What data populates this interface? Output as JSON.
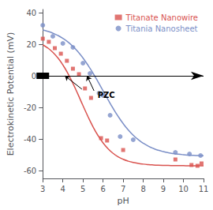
{
  "chart_data": {
    "type": "scatter",
    "xlabel": "pH",
    "ylabel": "Electrokinetic Potential (mV)",
    "xlim": [
      3,
      11
    ],
    "ylim": [
      -65,
      42
    ],
    "xticks": [
      3,
      4,
      5,
      6,
      7,
      8,
      9,
      10,
      11
    ],
    "yticks": [
      -60,
      -40,
      -20,
      0,
      20,
      40
    ],
    "grid": false,
    "legend": "upper right",
    "series": [
      {
        "type": "line",
        "color": "#d9534f",
        "x": [
          3,
          3.25,
          3.5,
          3.75,
          4,
          4.25,
          4.5,
          4.75,
          5,
          5.25,
          5.5,
          5.75,
          6,
          6.25,
          6.5,
          6.75,
          7,
          7.25,
          7.5,
          7.75,
          8,
          8.25,
          8.5,
          8.75,
          9,
          9.25,
          9.5,
          9.75,
          10,
          10.25,
          10.5,
          10.75,
          11
        ],
        "values": [
          19.64,
          17.6,
          14.88,
          11.34,
          6.88,
          1.47,
          -4.81,
          -11.71,
          -18.87,
          -25.85,
          -32.27,
          -37.87,
          -42.52,
          -46.24,
          -49.11,
          -51.28,
          -52.88,
          -54.05,
          -54.9,
          -55.51,
          -55.94,
          -56.25,
          -56.47,
          -56.63,
          -56.74,
          -56.81,
          -56.87,
          -56.91,
          -56.93,
          -56.95,
          -56.97,
          -56.98,
          -56.98
        ]
      },
      {
        "type": "line",
        "color": "#7b8fc7",
        "x": [
          3,
          3.25,
          3.5,
          3.75,
          4,
          4.25,
          4.5,
          4.75,
          5,
          5.25,
          5.5,
          5.75,
          6,
          6.25,
          6.5,
          6.75,
          7,
          7.25,
          7.5,
          7.75,
          8,
          8.25,
          8.5,
          8.75,
          9,
          9.25,
          9.5,
          9.75,
          10,
          10.25,
          10.5,
          10.75,
          11
        ],
        "values": [
          29.05,
          28.16,
          27.01,
          25.56,
          23.72,
          21.44,
          18.63,
          15.25,
          11.27,
          6.71,
          1.63,
          -3.83,
          -9.5,
          -15.17,
          -20.63,
          -25.71,
          -30.27,
          -34.25,
          -37.63,
          -40.43,
          -42.72,
          -44.56,
          -46.01,
          -47.16,
          -48.05,
          -48.74,
          -49.27,
          -49.68,
          -49.99,
          -50.23,
          -50.42,
          -50.56,
          -50.66
        ]
      },
      {
        "type": "scatter",
        "name": "Titanate Nanowire",
        "color": "#d9534f",
        "marker": "square",
        "x": [
          3.0,
          3.3,
          3.6,
          3.9,
          4.2,
          4.5,
          4.8,
          5.1,
          5.4,
          5.9,
          6.2,
          7.0,
          9.6,
          10.4,
          10.7,
          10.9
        ],
        "values": [
          23.5,
          21.5,
          17.5,
          14.0,
          9.5,
          4.5,
          1.0,
          -8.0,
          -14.0,
          -39.5,
          -41.0,
          -47.0,
          -53.0,
          -56.5,
          -57.0,
          -55.5
        ]
      },
      {
        "type": "scatter",
        "name": "Titania Nanosheet",
        "color": "#7b8fc7",
        "marker": "circle",
        "x": [
          3.0,
          3.5,
          4.0,
          4.5,
          5.0,
          5.35,
          5.8,
          6.0,
          6.35,
          6.85,
          7.5,
          9.6,
          10.3,
          10.85
        ],
        "values": [
          32.0,
          25.0,
          20.5,
          18.0,
          8.0,
          1.5,
          -11.0,
          -12.5,
          -25.0,
          -38.5,
          -40.5,
          -48.5,
          -49.5,
          -50.5
        ]
      }
    ],
    "hline": 0,
    "arrows": [
      {
        "from": [
          4.95,
          -8.5
        ],
        "to": [
          4.1,
          0.0
        ]
      },
      {
        "from": [
          5.55,
          -9.5
        ],
        "to": [
          5.2,
          0.0
        ]
      }
    ],
    "annotations": [
      {
        "text": "PZC",
        "x": 5.65,
        "y": -9.5
      }
    ]
  }
}
